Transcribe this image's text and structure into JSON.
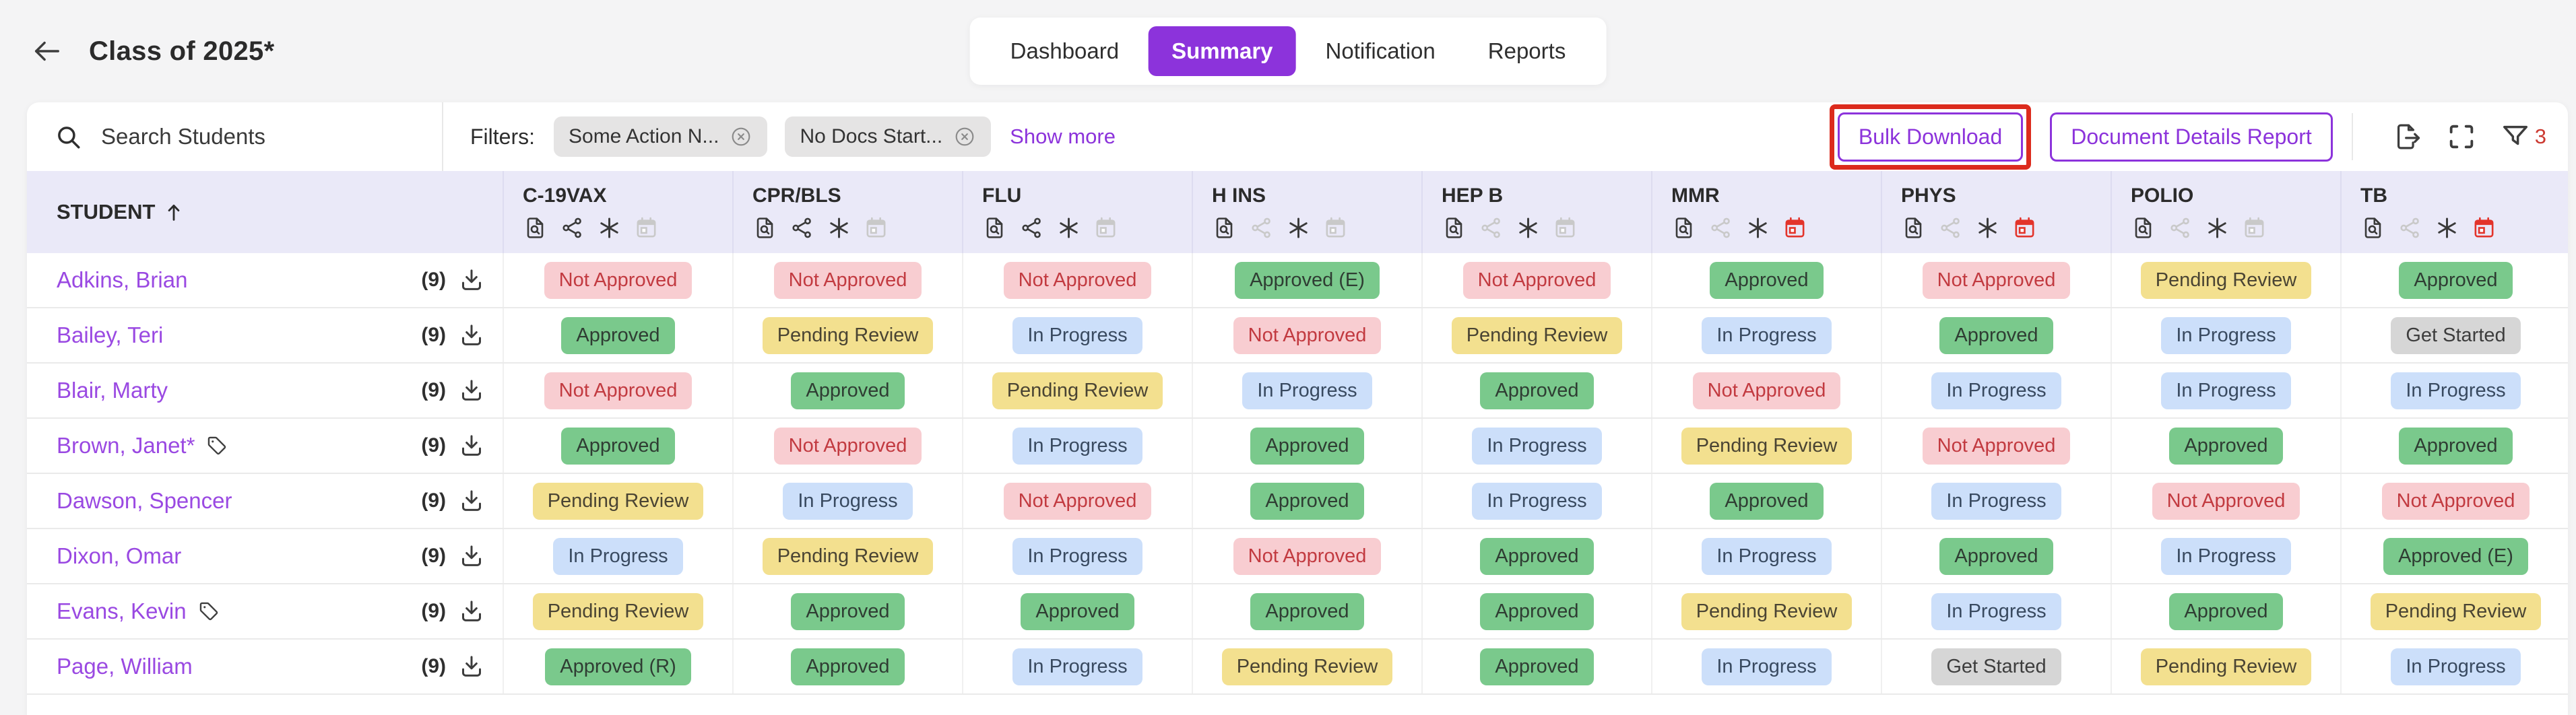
{
  "page": {
    "title": "Class of 2025*"
  },
  "tabs": [
    {
      "label": "Dashboard",
      "active": false
    },
    {
      "label": "Summary",
      "active": true
    },
    {
      "label": "Notification",
      "active": false
    },
    {
      "label": "Reports",
      "active": false
    }
  ],
  "toolbar": {
    "search_placeholder": "Search Students",
    "filters_label": "Filters:",
    "chips": [
      {
        "label": "Some Action N..."
      },
      {
        "label": "No Docs Start..."
      }
    ],
    "show_more_label": "Show more",
    "bulk_download_label": "Bulk Download",
    "doc_details_label": "Document Details Report",
    "filter_count": "3",
    "icons": [
      "export-icon",
      "fullscreen-icon",
      "filter-funnel-icon"
    ]
  },
  "table": {
    "student_header": "STUDENT",
    "header_icons": [
      "document-search-icon",
      "share-icon",
      "asterisk-icon",
      "calendar-icon"
    ],
    "columns": [
      {
        "label": "C-19VAX",
        "share_active": true,
        "calendar": "gray"
      },
      {
        "label": "CPR/BLS",
        "share_active": true,
        "calendar": "gray"
      },
      {
        "label": "FLU",
        "share_active": true,
        "calendar": "gray"
      },
      {
        "label": "H INS",
        "share_active": false,
        "calendar": "gray"
      },
      {
        "label": "HEP B",
        "share_active": false,
        "calendar": "gray"
      },
      {
        "label": "MMR",
        "share_active": false,
        "calendar": "red"
      },
      {
        "label": "PHYS",
        "share_active": false,
        "calendar": "red"
      },
      {
        "label": "POLIO",
        "share_active": false,
        "calendar": "gray"
      },
      {
        "label": "TB",
        "share_active": false,
        "calendar": "red"
      }
    ],
    "rows": [
      {
        "name": "Adkins, Brian",
        "tag": false,
        "count": "(9)",
        "statuses": [
          {
            "label": "Not Approved",
            "type": "not_approved"
          },
          {
            "label": "Not Approved",
            "type": "not_approved"
          },
          {
            "label": "Not Approved",
            "type": "not_approved"
          },
          {
            "label": "Approved (E)",
            "type": "approved"
          },
          {
            "label": "Not Approved",
            "type": "not_approved"
          },
          {
            "label": "Approved",
            "type": "approved"
          },
          {
            "label": "Not Approved",
            "type": "not_approved"
          },
          {
            "label": "Pending Review",
            "type": "pending"
          },
          {
            "label": "Approved",
            "type": "approved"
          }
        ]
      },
      {
        "name": "Bailey, Teri",
        "tag": false,
        "count": "(9)",
        "statuses": [
          {
            "label": "Approved",
            "type": "approved"
          },
          {
            "label": "Pending Review",
            "type": "pending"
          },
          {
            "label": "In Progress",
            "type": "in_progress"
          },
          {
            "label": "Not Approved",
            "type": "not_approved"
          },
          {
            "label": "Pending Review",
            "type": "pending"
          },
          {
            "label": "In Progress",
            "type": "in_progress"
          },
          {
            "label": "Approved",
            "type": "approved"
          },
          {
            "label": "In Progress",
            "type": "in_progress"
          },
          {
            "label": "Get Started",
            "type": "get_started"
          }
        ]
      },
      {
        "name": "Blair, Marty",
        "tag": false,
        "count": "(9)",
        "statuses": [
          {
            "label": "Not Approved",
            "type": "not_approved"
          },
          {
            "label": "Approved",
            "type": "approved"
          },
          {
            "label": "Pending Review",
            "type": "pending"
          },
          {
            "label": "In Progress",
            "type": "in_progress"
          },
          {
            "label": "Approved",
            "type": "approved"
          },
          {
            "label": "Not Approved",
            "type": "not_approved"
          },
          {
            "label": "In Progress",
            "type": "in_progress"
          },
          {
            "label": "In Progress",
            "type": "in_progress"
          },
          {
            "label": "In Progress",
            "type": "in_progress"
          }
        ]
      },
      {
        "name": "Brown, Janet*",
        "tag": true,
        "count": "(9)",
        "statuses": [
          {
            "label": "Approved",
            "type": "approved"
          },
          {
            "label": "Not Approved",
            "type": "not_approved"
          },
          {
            "label": "In Progress",
            "type": "in_progress"
          },
          {
            "label": "Approved",
            "type": "approved"
          },
          {
            "label": "In Progress",
            "type": "in_progress"
          },
          {
            "label": "Pending Review",
            "type": "pending"
          },
          {
            "label": "Not Approved",
            "type": "not_approved"
          },
          {
            "label": "Approved",
            "type": "approved"
          },
          {
            "label": "Approved",
            "type": "approved"
          }
        ]
      },
      {
        "name": "Dawson, Spencer",
        "tag": false,
        "count": "(9)",
        "statuses": [
          {
            "label": "Pending Review",
            "type": "pending"
          },
          {
            "label": "In Progress",
            "type": "in_progress"
          },
          {
            "label": "Not Approved",
            "type": "not_approved"
          },
          {
            "label": "Approved",
            "type": "approved"
          },
          {
            "label": "In Progress",
            "type": "in_progress"
          },
          {
            "label": "Approved",
            "type": "approved"
          },
          {
            "label": "In Progress",
            "type": "in_progress"
          },
          {
            "label": "Not Approved",
            "type": "not_approved"
          },
          {
            "label": "Not Approved",
            "type": "not_approved"
          }
        ]
      },
      {
        "name": "Dixon, Omar",
        "tag": false,
        "count": "(9)",
        "statuses": [
          {
            "label": "In Progress",
            "type": "in_progress"
          },
          {
            "label": "Pending Review",
            "type": "pending"
          },
          {
            "label": "In Progress",
            "type": "in_progress"
          },
          {
            "label": "Not Approved",
            "type": "not_approved"
          },
          {
            "label": "Approved",
            "type": "approved"
          },
          {
            "label": "In Progress",
            "type": "in_progress"
          },
          {
            "label": "Approved",
            "type": "approved"
          },
          {
            "label": "In Progress",
            "type": "in_progress"
          },
          {
            "label": "Approved (E)",
            "type": "approved"
          }
        ]
      },
      {
        "name": "Evans, Kevin",
        "tag": true,
        "count": "(9)",
        "statuses": [
          {
            "label": "Pending Review",
            "type": "pending"
          },
          {
            "label": "Approved",
            "type": "approved"
          },
          {
            "label": "Approved",
            "type": "approved"
          },
          {
            "label": "Approved",
            "type": "approved"
          },
          {
            "label": "Approved",
            "type": "approved"
          },
          {
            "label": "Pending Review",
            "type": "pending"
          },
          {
            "label": "In Progress",
            "type": "in_progress"
          },
          {
            "label": "Approved",
            "type": "approved"
          },
          {
            "label": "Pending Review",
            "type": "pending"
          }
        ]
      },
      {
        "name": "Page, William",
        "tag": false,
        "count": "(9)",
        "statuses": [
          {
            "label": "Approved (R)",
            "type": "approved"
          },
          {
            "label": "Approved",
            "type": "approved"
          },
          {
            "label": "In Progress",
            "type": "in_progress"
          },
          {
            "label": "Pending Review",
            "type": "pending"
          },
          {
            "label": "Approved",
            "type": "approved"
          },
          {
            "label": "In Progress",
            "type": "in_progress"
          },
          {
            "label": "Get Started",
            "type": "get_started"
          },
          {
            "label": "Pending Review",
            "type": "pending"
          },
          {
            "label": "In Progress",
            "type": "in_progress"
          }
        ]
      }
    ]
  },
  "colors": {
    "accent_purple": "#8C33DB",
    "link_purple": "#9A49E2",
    "annotation_red": "#DC2B1D",
    "calendar_alert_red": "#E3342B",
    "header_lavender": "#EAE9F8",
    "badge_approved": "#7AC98C",
    "badge_not_approved": "#F8CDD1",
    "badge_pending": "#F3E08F",
    "badge_in_progress": "#CCDFFA",
    "badge_get_started": "#D6D6D6",
    "filter_count_red": "#CC3A31"
  }
}
